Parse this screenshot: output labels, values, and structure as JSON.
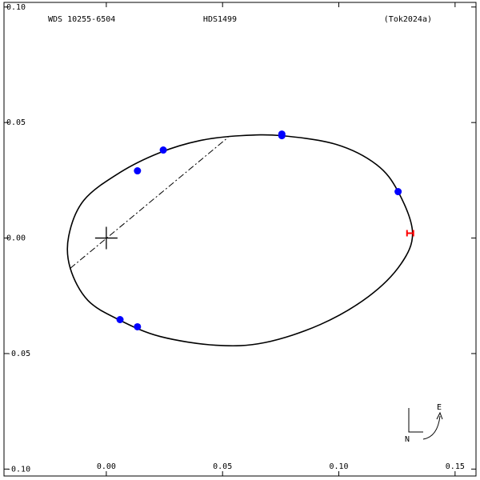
{
  "chart_data": {
    "type": "scatter",
    "annotations": [
      "WDS 10255-6504",
      "HDS1499",
      "(Tok2024a)"
    ],
    "compass": [
      "E",
      "N"
    ],
    "xlim": [
      -0.044,
      0.159
    ],
    "ylim": [
      -0.103,
      0.102
    ],
    "xticks": [
      {
        "value": 0,
        "label": "0.00"
      },
      0.05,
      {
        "value": 0.1,
        "label": "0.10"
      },
      0.15
    ],
    "yticks": [
      {
        "value": 0.1,
        "label": "0.10"
      },
      0.05,
      {
        "value": 0,
        "label": "0.00"
      },
      -0.05,
      {
        "value": -0.1,
        "label": "-0.10"
      }
    ],
    "series": [
      {
        "type": "closed-curve",
        "color": "#000000",
        "x": [
          0.1317,
          0.1255,
          0.1162,
          0.099,
          0.0755,
          0.0576,
          0.0403,
          0.0231,
          0.0059,
          -0.0097,
          -0.0162,
          -0.0155,
          -0.0079,
          0.0059,
          0.0231,
          0.0472,
          0.0679,
          0.0921,
          0.1128,
          0.1266
        ],
        "values": [
          0.0024,
          0.0201,
          0.0318,
          0.0405,
          0.0443,
          0.0443,
          0.0422,
          0.037,
          0.0284,
          0.0163,
          0.0007,
          -0.0131,
          -0.027,
          -0.0356,
          -0.0426,
          -0.0464,
          -0.0453,
          -0.0374,
          -0.0253,
          -0.0114
        ]
      },
      {
        "type": "dash-dot",
        "color": "#000000",
        "x": [
          -0.0155,
          0.0524
        ],
        "values": [
          -0.0131,
          0.0436
        ]
      },
      {
        "type": "cross",
        "color": "#000000",
        "x": [
          0
        ],
        "values": [
          0
        ]
      },
      {
        "type": "dot",
        "color": "#0000ff",
        "x": [
          0.0134,
          0.0245,
          0.0755,
          0.0755,
          0.1255,
          0.0059,
          0.0134
        ],
        "values": [
          0.0291,
          0.0381,
          0.045,
          0.0443,
          0.0201,
          -0.0353,
          -0.0384
        ]
      },
      {
        "type": "bar-mark",
        "color": "#ff0000",
        "x": [
          0.1307
        ],
        "values": [
          0.0021
        ]
      }
    ]
  }
}
